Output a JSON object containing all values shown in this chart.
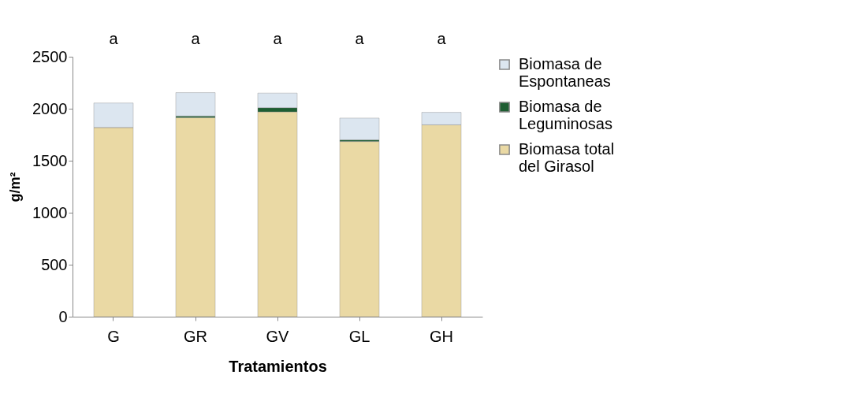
{
  "chart_data": {
    "type": "bar",
    "stacked": true,
    "categories": [
      "G",
      "GR",
      "GV",
      "GL",
      "GH"
    ],
    "series": [
      {
        "name": "Biomasa total del Girasol",
        "color": "#ead9a4",
        "values": [
          1820,
          1915,
          1970,
          1685,
          1845
        ]
      },
      {
        "name": "Biomasa de Leguminosas",
        "color": "#1e5e32",
        "values": [
          0,
          15,
          40,
          15,
          0
        ]
      },
      {
        "name": "Biomasa de Espontaneas",
        "color": "#dce6f0",
        "values": [
          235,
          225,
          140,
          210,
          120
        ]
      }
    ],
    "xlabel": "Tratamientos",
    "ylabel": "g/m²",
    "ylim": [
      0,
      2500
    ],
    "yticks": [
      0,
      500,
      1000,
      1500,
      2000,
      2500
    ],
    "grid": false,
    "legend": "right",
    "annotations": [
      "a",
      "a",
      "a",
      "a",
      "a"
    ]
  }
}
